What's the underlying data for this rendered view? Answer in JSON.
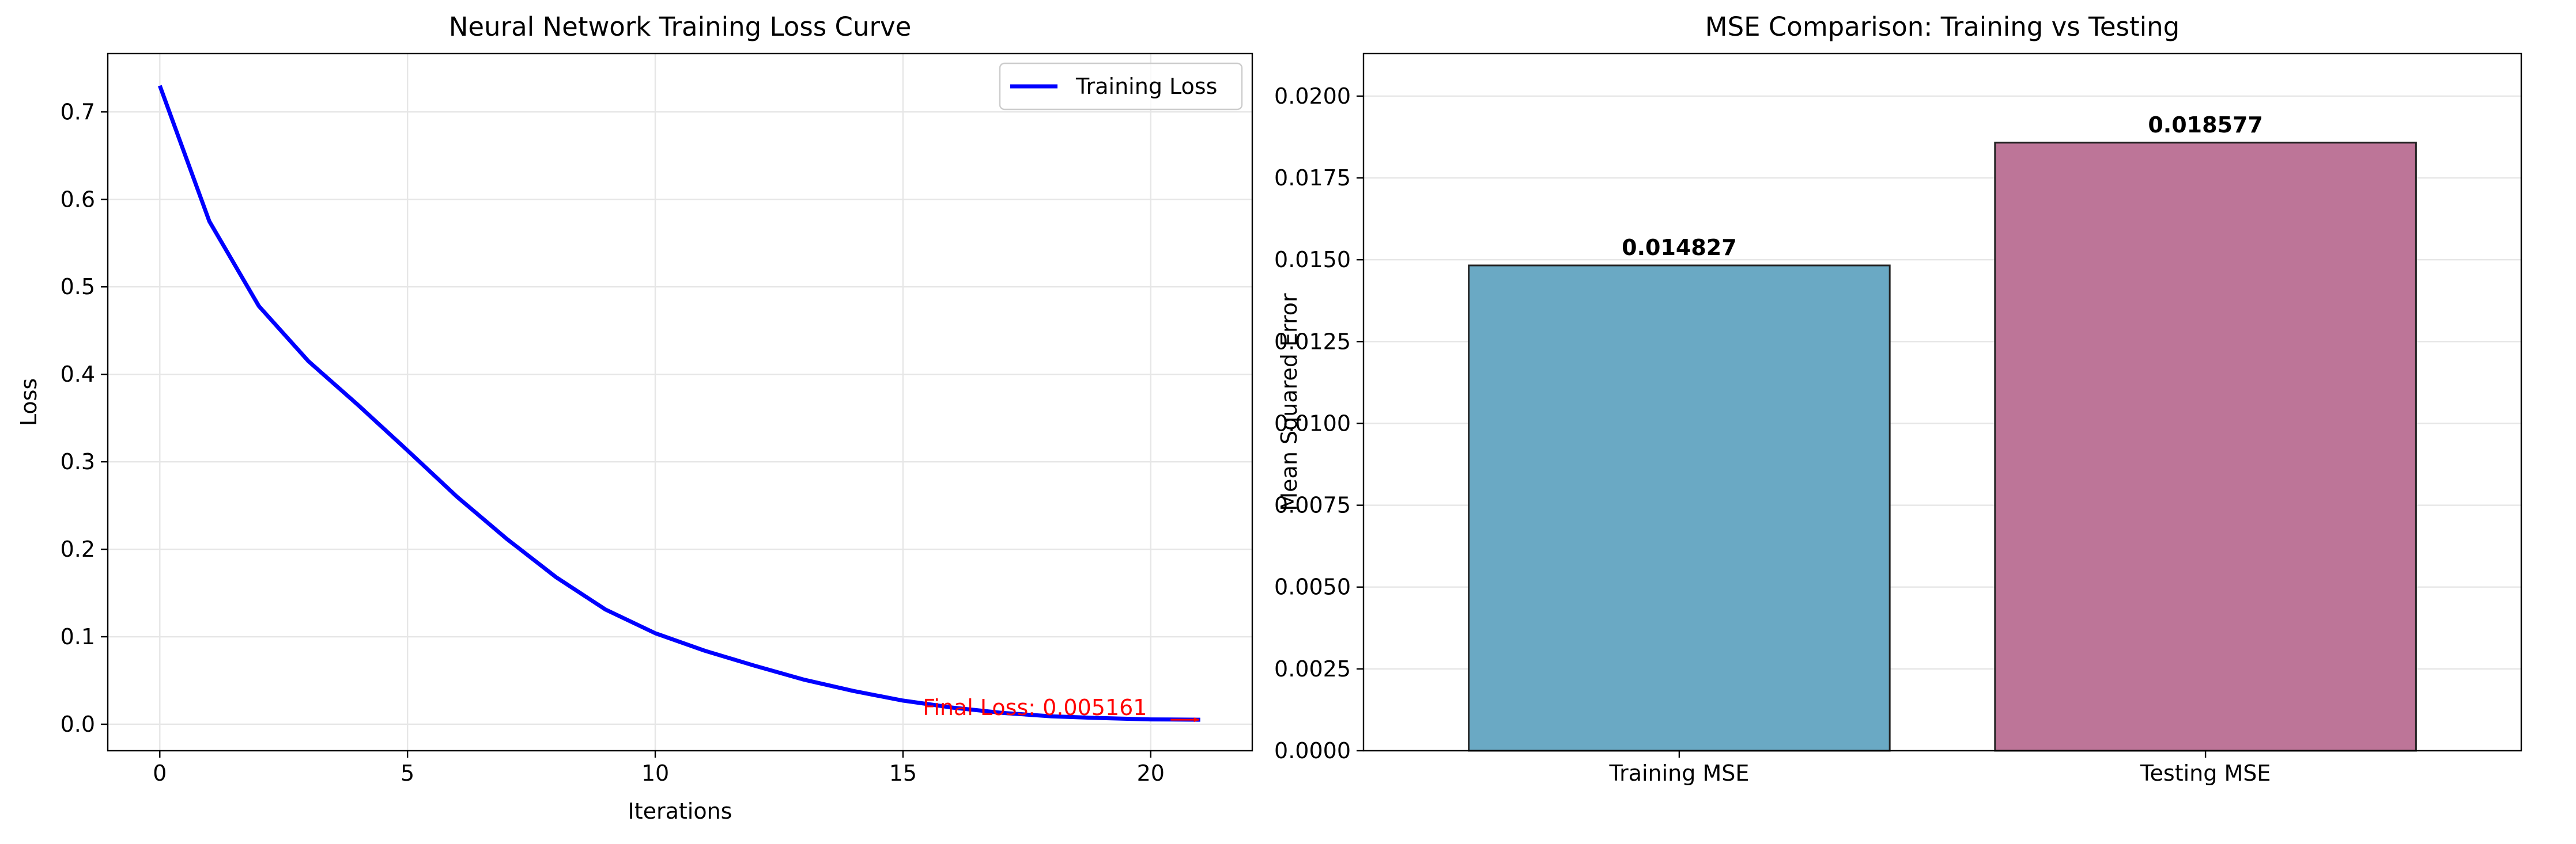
{
  "colors": {
    "line": "#0000ff",
    "annotation": "#ff0000",
    "bar_training": "#6aa9c4",
    "bar_testing": "#bd7598",
    "grid": "#e6e6e6",
    "axis": "#000000"
  },
  "chart_data": [
    {
      "type": "line",
      "title": "Neural Network Training Loss Curve",
      "xlabel": "Iterations",
      "ylabel": "Loss",
      "xlim": [
        -1.05,
        22.05
      ],
      "ylim": [
        -0.0303,
        0.7667
      ],
      "xticks": [
        0,
        5,
        10,
        15,
        20
      ],
      "xtick_labels": [
        "0",
        "5",
        "10",
        "15",
        "20"
      ],
      "yticks": [
        0.0,
        0.1,
        0.2,
        0.3,
        0.4,
        0.5,
        0.6,
        0.7
      ],
      "ytick_labels": [
        "0.0",
        "0.1",
        "0.2",
        "0.3",
        "0.4",
        "0.5",
        "0.6",
        "0.7"
      ],
      "grid": true,
      "legend_position": "top-right",
      "series": [
        {
          "name": "Training Loss",
          "x": [
            0,
            1,
            2,
            3,
            4,
            5,
            6,
            7,
            8,
            9,
            10,
            11,
            12,
            13,
            14,
            15,
            16,
            17,
            18,
            19,
            20,
            21
          ],
          "y": [
            0.73,
            0.575,
            0.478,
            0.415,
            0.365,
            0.313,
            0.26,
            0.212,
            0.168,
            0.131,
            0.104,
            0.084,
            0.067,
            0.051,
            0.038,
            0.027,
            0.019,
            0.013,
            0.009,
            0.007,
            0.0055,
            0.005161
          ]
        }
      ],
      "annotation": {
        "text": "Final Loss: 0.005161",
        "x": 21,
        "y": 0.005161,
        "text_x": 15.4,
        "text_y": 0.005161
      }
    },
    {
      "type": "bar",
      "title": "MSE Comparison: Training vs Testing",
      "xlabel": "",
      "ylabel": "Mean Squared Error",
      "categories": [
        "Training MSE",
        "Testing MSE"
      ],
      "values": [
        0.014827,
        0.018577
      ],
      "value_labels": [
        "0.014827",
        "0.018577"
      ],
      "ylim": [
        0,
        0.0213
      ],
      "yticks": [
        0.0,
        0.0025,
        0.005,
        0.0075,
        0.01,
        0.0125,
        0.015,
        0.0175,
        0.02
      ],
      "ytick_labels": [
        "0.0000",
        "0.0025",
        "0.0050",
        "0.0075",
        "0.0100",
        "0.0125",
        "0.0150",
        "0.0175",
        "0.0200"
      ],
      "grid": true
    }
  ]
}
